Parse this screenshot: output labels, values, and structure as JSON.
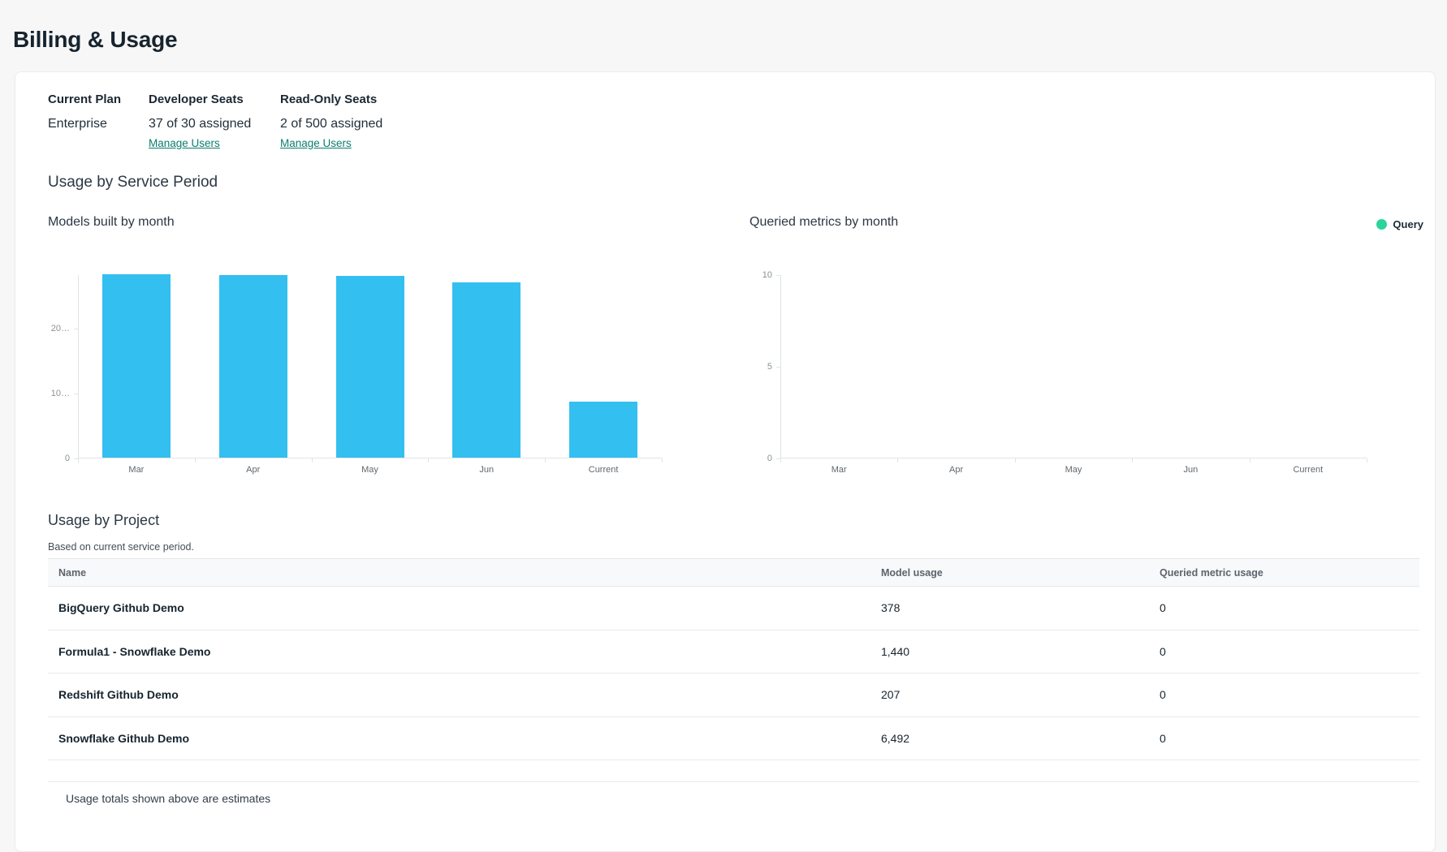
{
  "page": {
    "title": "Billing & Usage"
  },
  "plan": {
    "current_plan_label": "Current Plan",
    "current_plan_value": "Enterprise",
    "developer_seats_label": "Developer Seats",
    "developer_seats_value": "37 of 30 assigned",
    "developer_seats_link": "Manage Users",
    "readonly_seats_label": "Read-Only Seats",
    "readonly_seats_value": "2 of 500 assigned",
    "readonly_seats_link": "Manage Users"
  },
  "usage_section": {
    "title": "Usage by Service Period"
  },
  "chart_data": [
    {
      "type": "bar",
      "title": "Models built by month",
      "categories": [
        "Mar",
        "Apr",
        "May",
        "Jun",
        "Current"
      ],
      "values": [
        28200,
        28100,
        28000,
        27000,
        8600
      ],
      "xlabel": "",
      "ylabel": "",
      "ylim": [
        0,
        28200
      ],
      "yticks": [
        {
          "value": 0,
          "label": "0"
        },
        {
          "value": 10000,
          "label": "10…"
        },
        {
          "value": 20000,
          "label": "20…"
        }
      ],
      "bar_color": "#33bfef",
      "grid": false,
      "legend": null
    },
    {
      "type": "bar",
      "title": "Queried metrics by month",
      "categories": [
        "Mar",
        "Apr",
        "May",
        "Jun",
        "Current"
      ],
      "values": [
        0,
        0,
        0,
        0,
        0
      ],
      "xlabel": "",
      "ylabel": "",
      "ylim": [
        0,
        10
      ],
      "yticks": [
        {
          "value": 0,
          "label": "0"
        },
        {
          "value": 5,
          "label": "5"
        },
        {
          "value": 10,
          "label": "10"
        }
      ],
      "bar_color": "#2dd39c",
      "grid": false,
      "legend": {
        "label": "Query",
        "color": "#2dd39c",
        "position": "top-right"
      }
    }
  ],
  "project_usage": {
    "title": "Usage by Project",
    "subtitle": "Based on current service period.",
    "columns": [
      "Name",
      "Model usage",
      "Queried metric usage"
    ],
    "rows": [
      {
        "name": "BigQuery Github Demo",
        "model_usage": "378",
        "queried_metric_usage": "0"
      },
      {
        "name": "Formula1 - Snowflake Demo",
        "model_usage": "1,440",
        "queried_metric_usage": "0"
      },
      {
        "name": "Redshift Github Demo",
        "model_usage": "207",
        "queried_metric_usage": "0"
      },
      {
        "name": "Snowflake Github Demo",
        "model_usage": "6,492",
        "queried_metric_usage": "0"
      }
    ],
    "footnote": "Usage totals shown above are estimates"
  },
  "colors": {
    "link": "#0c7d6e",
    "bar_blue": "#33bfef",
    "legend_green": "#2dd39c",
    "heading": "#16242e",
    "axis_line": "#e0e4e6"
  }
}
